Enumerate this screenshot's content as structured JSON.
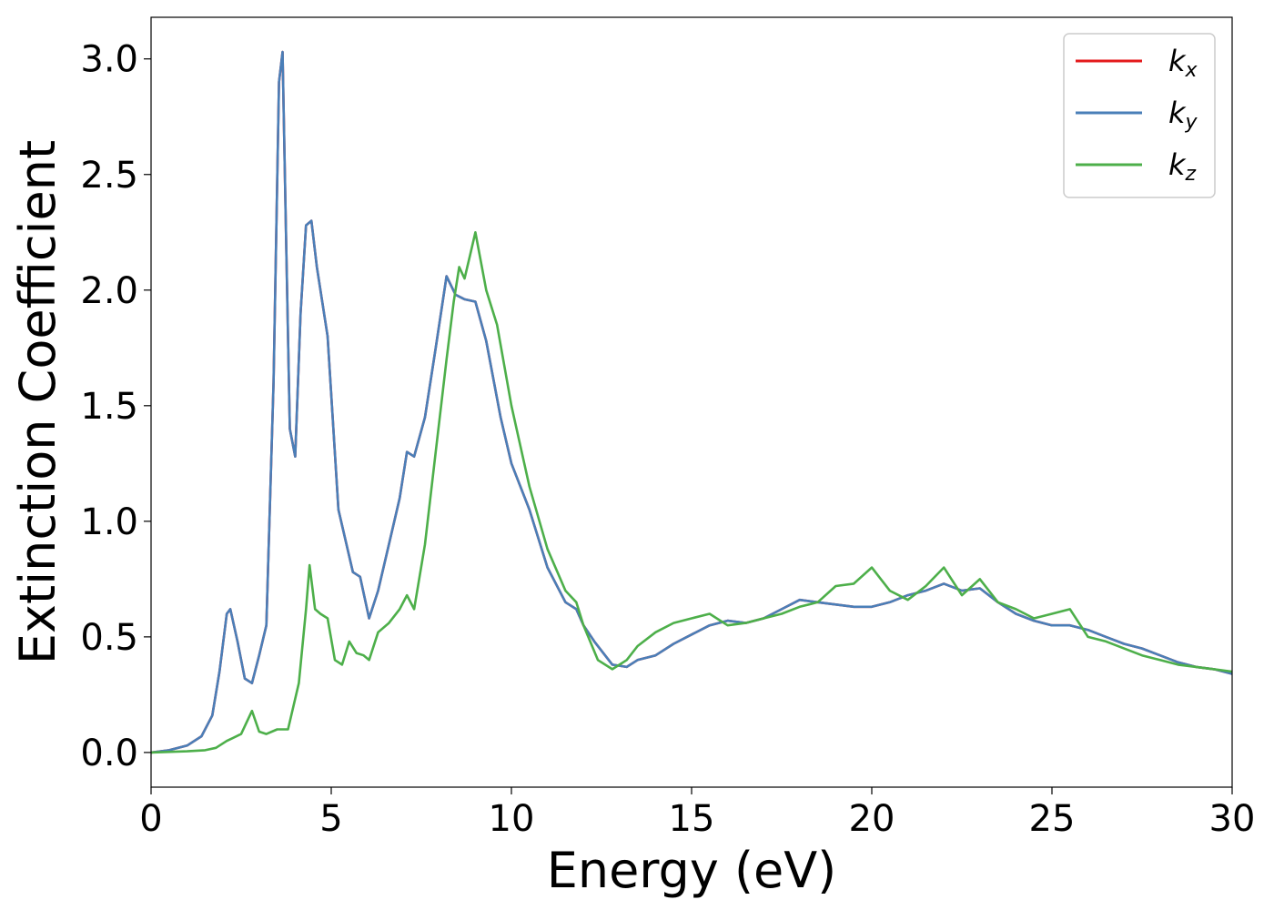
{
  "chart_data": {
    "type": "line",
    "title": "",
    "xlabel": "Energy (eV)",
    "ylabel": "Extinction Coefficient",
    "xlim": [
      0,
      30
    ],
    "ylim": [
      -0.15,
      3.18
    ],
    "xticks": [
      0,
      5,
      10,
      15,
      20,
      25,
      30
    ],
    "xtick_labels": [
      "0",
      "5",
      "10",
      "15",
      "20",
      "25",
      "30"
    ],
    "yticks": [
      0.0,
      0.5,
      1.0,
      1.5,
      2.0,
      2.5,
      3.0
    ],
    "ytick_labels": [
      "0.0",
      "0.5",
      "1.0",
      "1.5",
      "2.0",
      "2.5",
      "3.0"
    ],
    "grid": false,
    "legend_position": "top-right",
    "series": [
      {
        "name": "k_x",
        "label_main": "k",
        "label_sub": "x",
        "color": "#e41a1c",
        "x": [
          0,
          0.5,
          1.0,
          1.4,
          1.7,
          1.9,
          2.1,
          2.2,
          2.4,
          2.6,
          2.8,
          3.0,
          3.2,
          3.4,
          3.55,
          3.65,
          3.75,
          3.85,
          4.0,
          4.15,
          4.3,
          4.45,
          4.6,
          4.9,
          5.2,
          5.6,
          5.8,
          6.05,
          6.3,
          6.6,
          6.9,
          7.1,
          7.3,
          7.6,
          7.9,
          8.2,
          8.45,
          8.7,
          9.0,
          9.3,
          9.7,
          10.0,
          10.5,
          11.0,
          11.5,
          11.8,
          12.0,
          12.3,
          12.8,
          13.2,
          13.5,
          14.0,
          14.5,
          15.0,
          15.5,
          16.0,
          16.5,
          17.0,
          17.5,
          18.0,
          18.5,
          19.0,
          19.5,
          20.0,
          20.5,
          21.0,
          21.5,
          22.0,
          22.5,
          23.0,
          23.5,
          24.0,
          24.5,
          25.0,
          25.5,
          26.0,
          26.5,
          27.0,
          27.5,
          28.0,
          28.5,
          29.0,
          29.5,
          30.0
        ],
        "y": [
          0.0,
          0.01,
          0.03,
          0.07,
          0.16,
          0.35,
          0.6,
          0.62,
          0.48,
          0.32,
          0.3,
          0.42,
          0.55,
          1.6,
          2.9,
          3.03,
          2.2,
          1.4,
          1.28,
          1.9,
          2.28,
          2.3,
          2.1,
          1.8,
          1.05,
          0.78,
          0.76,
          0.58,
          0.7,
          0.9,
          1.1,
          1.3,
          1.28,
          1.45,
          1.75,
          2.06,
          1.98,
          1.96,
          1.95,
          1.78,
          1.45,
          1.25,
          1.05,
          0.8,
          0.65,
          0.62,
          0.55,
          0.48,
          0.38,
          0.37,
          0.4,
          0.42,
          0.47,
          0.51,
          0.55,
          0.57,
          0.56,
          0.58,
          0.62,
          0.66,
          0.65,
          0.64,
          0.63,
          0.63,
          0.65,
          0.68,
          0.7,
          0.73,
          0.7,
          0.71,
          0.65,
          0.6,
          0.57,
          0.55,
          0.55,
          0.53,
          0.5,
          0.47,
          0.45,
          0.42,
          0.39,
          0.37,
          0.36,
          0.34
        ]
      },
      {
        "name": "k_y",
        "label_main": "k",
        "label_sub": "y",
        "color": "#4a7fb8",
        "x": [
          0,
          0.5,
          1.0,
          1.4,
          1.7,
          1.9,
          2.1,
          2.2,
          2.4,
          2.6,
          2.8,
          3.0,
          3.2,
          3.4,
          3.55,
          3.65,
          3.75,
          3.85,
          4.0,
          4.15,
          4.3,
          4.45,
          4.6,
          4.9,
          5.2,
          5.6,
          5.8,
          6.05,
          6.3,
          6.6,
          6.9,
          7.1,
          7.3,
          7.6,
          7.9,
          8.2,
          8.45,
          8.7,
          9.0,
          9.3,
          9.7,
          10.0,
          10.5,
          11.0,
          11.5,
          11.8,
          12.0,
          12.3,
          12.8,
          13.2,
          13.5,
          14.0,
          14.5,
          15.0,
          15.5,
          16.0,
          16.5,
          17.0,
          17.5,
          18.0,
          18.5,
          19.0,
          19.5,
          20.0,
          20.5,
          21.0,
          21.5,
          22.0,
          22.5,
          23.0,
          23.5,
          24.0,
          24.5,
          25.0,
          25.5,
          26.0,
          26.5,
          27.0,
          27.5,
          28.0,
          28.5,
          29.0,
          29.5,
          30.0
        ],
        "y": [
          0.0,
          0.01,
          0.03,
          0.07,
          0.16,
          0.35,
          0.6,
          0.62,
          0.48,
          0.32,
          0.3,
          0.42,
          0.55,
          1.6,
          2.9,
          3.03,
          2.2,
          1.4,
          1.28,
          1.9,
          2.28,
          2.3,
          2.1,
          1.8,
          1.05,
          0.78,
          0.76,
          0.58,
          0.7,
          0.9,
          1.1,
          1.3,
          1.28,
          1.45,
          1.75,
          2.06,
          1.98,
          1.96,
          1.95,
          1.78,
          1.45,
          1.25,
          1.05,
          0.8,
          0.65,
          0.62,
          0.55,
          0.48,
          0.38,
          0.37,
          0.4,
          0.42,
          0.47,
          0.51,
          0.55,
          0.57,
          0.56,
          0.58,
          0.62,
          0.66,
          0.65,
          0.64,
          0.63,
          0.63,
          0.65,
          0.68,
          0.7,
          0.73,
          0.7,
          0.71,
          0.65,
          0.6,
          0.57,
          0.55,
          0.55,
          0.53,
          0.5,
          0.47,
          0.45,
          0.42,
          0.39,
          0.37,
          0.36,
          0.34
        ]
      },
      {
        "name": "k_z",
        "label_main": "k",
        "label_sub": "z",
        "color": "#4daf4a",
        "x": [
          0,
          1.0,
          1.5,
          1.8,
          2.1,
          2.5,
          2.8,
          3.0,
          3.2,
          3.5,
          3.8,
          4.1,
          4.3,
          4.4,
          4.55,
          4.7,
          4.9,
          5.1,
          5.3,
          5.5,
          5.7,
          5.9,
          6.05,
          6.3,
          6.6,
          6.9,
          7.1,
          7.3,
          7.6,
          7.9,
          8.2,
          8.4,
          8.55,
          8.7,
          8.85,
          9.0,
          9.3,
          9.6,
          10.0,
          10.5,
          11.0,
          11.5,
          11.8,
          12.0,
          12.4,
          12.8,
          13.2,
          13.5,
          14.0,
          14.5,
          15.0,
          15.5,
          16.0,
          16.5,
          17.0,
          17.5,
          18.0,
          18.5,
          19.0,
          19.5,
          20.0,
          20.5,
          21.0,
          21.5,
          22.0,
          22.5,
          23.0,
          23.5,
          24.0,
          24.5,
          25.0,
          25.5,
          26.0,
          26.5,
          27.0,
          27.5,
          28.0,
          28.5,
          29.0,
          29.5,
          30.0
        ],
        "y": [
          0.0,
          0.005,
          0.01,
          0.02,
          0.05,
          0.08,
          0.18,
          0.09,
          0.08,
          0.1,
          0.1,
          0.3,
          0.62,
          0.81,
          0.62,
          0.6,
          0.58,
          0.4,
          0.38,
          0.48,
          0.43,
          0.42,
          0.4,
          0.52,
          0.56,
          0.62,
          0.68,
          0.62,
          0.9,
          1.3,
          1.7,
          1.95,
          2.1,
          2.05,
          2.15,
          2.25,
          2.0,
          1.85,
          1.5,
          1.15,
          0.88,
          0.7,
          0.65,
          0.55,
          0.4,
          0.36,
          0.4,
          0.46,
          0.52,
          0.56,
          0.58,
          0.6,
          0.55,
          0.56,
          0.58,
          0.6,
          0.63,
          0.65,
          0.72,
          0.73,
          0.8,
          0.7,
          0.66,
          0.72,
          0.8,
          0.68,
          0.75,
          0.65,
          0.62,
          0.58,
          0.6,
          0.62,
          0.5,
          0.48,
          0.45,
          0.42,
          0.4,
          0.38,
          0.37,
          0.36,
          0.35
        ]
      }
    ]
  }
}
